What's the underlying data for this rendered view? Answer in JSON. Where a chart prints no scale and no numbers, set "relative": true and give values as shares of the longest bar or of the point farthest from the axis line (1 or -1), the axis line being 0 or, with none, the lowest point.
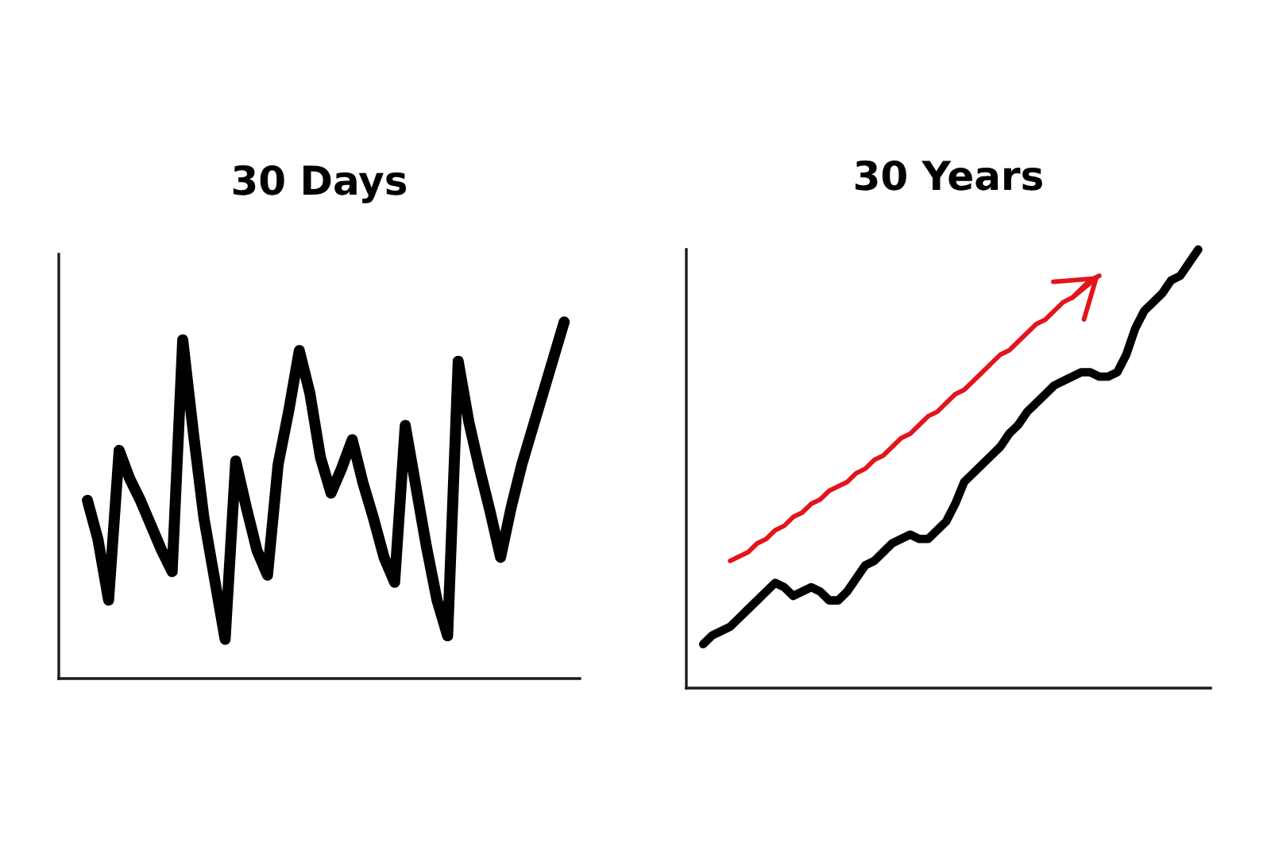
{
  "chart_data": [
    {
      "type": "line",
      "title": "30 Days",
      "relative": true,
      "categories": [
        null,
        null,
        null,
        null,
        null,
        null,
        null,
        null,
        null,
        null,
        null,
        null,
        null,
        null,
        null,
        null,
        null,
        null,
        null,
        null,
        null,
        null,
        null,
        null,
        null,
        null,
        null,
        null,
        null,
        null,
        null,
        null,
        null,
        null,
        null,
        null,
        null,
        null,
        null,
        null,
        null,
        null,
        null,
        null,
        null,
        null
      ],
      "series": [
        {
          "color": "#000000",
          "values": [
            0.5,
            0.39,
            0.22,
            0.64,
            0.56,
            0.5,
            0.43,
            0.36,
            0.3,
            0.95,
            0.69,
            0.45,
            0.28,
            0.11,
            0.61,
            0.48,
            0.36,
            0.29,
            0.6,
            0.75,
            0.92,
            0.8,
            0.62,
            0.52,
            0.59,
            0.67,
            0.55,
            0.45,
            0.34,
            0.27,
            0.71,
            0.54,
            0.37,
            0.22,
            0.12,
            0.89,
            0.72,
            0.59,
            0.47,
            0.34,
            0.48,
            0.6,
            0.7,
            0.8,
            0.9,
            1.0
          ]
        }
      ]
    },
    {
      "type": "line",
      "title": "30 Years",
      "relative": true,
      "categories": [
        null,
        null,
        null,
        null,
        null,
        null,
        null,
        null,
        null,
        null,
        null,
        null,
        null,
        null,
        null,
        null,
        null,
        null,
        null,
        null,
        null,
        null,
        null,
        null,
        null,
        null,
        null,
        null,
        null,
        null,
        null,
        null,
        null,
        null,
        null,
        null,
        null,
        null,
        null,
        null,
        null,
        null,
        null,
        null,
        null,
        null,
        null,
        null,
        null,
        null,
        null,
        null,
        null,
        null,
        null,
        null
      ],
      "series": [
        {
          "color": "#000000",
          "values": [
            0.1,
            0.12,
            0.13,
            0.14,
            0.16,
            0.18,
            0.2,
            0.22,
            0.24,
            0.23,
            0.21,
            0.22,
            0.23,
            0.22,
            0.2,
            0.2,
            0.22,
            0.25,
            0.28,
            0.29,
            0.31,
            0.33,
            0.34,
            0.35,
            0.34,
            0.34,
            0.36,
            0.38,
            0.42,
            0.47,
            0.49,
            0.51,
            0.53,
            0.55,
            0.58,
            0.6,
            0.63,
            0.65,
            0.67,
            0.69,
            0.7,
            0.71,
            0.72,
            0.72,
            0.71,
            0.71,
            0.72,
            0.76,
            0.82,
            0.86,
            0.88,
            0.9,
            0.93,
            0.94,
            0.97,
            1.0
          ]
        },
        {
          "color": "#e3141b",
          "values": [
            null,
            null,
            null,
            0.29,
            0.3,
            0.31,
            0.33,
            0.34,
            0.36,
            0.37,
            0.39,
            0.4,
            0.42,
            0.43,
            0.45,
            0.46,
            0.47,
            0.49,
            0.5,
            0.52,
            0.53,
            0.55,
            0.57,
            0.58,
            0.6,
            0.62,
            0.63,
            0.65,
            0.67,
            0.68,
            0.7,
            0.72,
            0.74,
            0.76,
            0.77,
            0.79,
            0.81,
            0.83,
            0.84,
            0.86,
            0.88,
            0.89,
            0.91,
            0.93,
            0.94,
            null,
            null,
            null,
            null,
            null,
            null,
            null,
            null,
            null,
            null,
            null
          ]
        }
      ]
    }
  ]
}
